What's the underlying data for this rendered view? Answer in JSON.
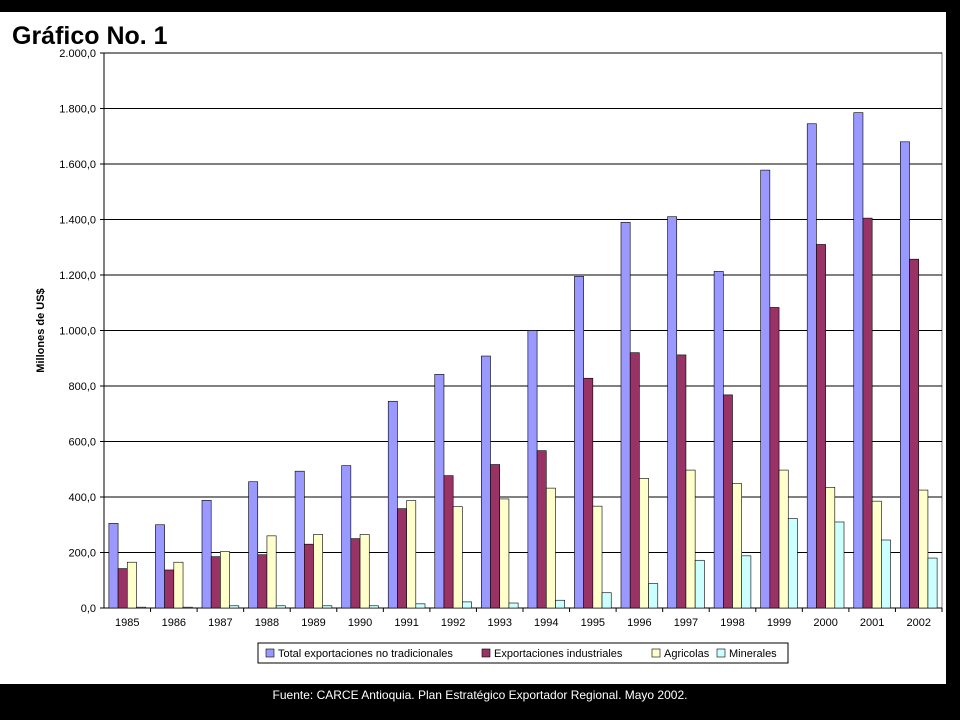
{
  "chart_data": {
    "type": "bar",
    "title": "Gráfico No. 1",
    "xlabel": "",
    "ylabel": "Millones de US$",
    "ylim": [
      0,
      2000
    ],
    "yticks": [
      "0,0",
      "200,0",
      "400,0",
      "600,0",
      "800,0",
      "1.000,0",
      "1.200,0",
      "1.400,0",
      "1.600,0",
      "1.800,0",
      "2.000,0"
    ],
    "grid": true,
    "legend_position": "bottom",
    "categories": [
      "1985",
      "1986",
      "1987",
      "1988",
      "1989",
      "1990",
      "1991",
      "1992",
      "1993",
      "1994",
      "1995",
      "1996",
      "1997",
      "1998",
      "1999",
      "2000",
      "2001",
      "2002"
    ],
    "series": [
      {
        "name": "Total exportaciones no tradicionales",
        "color": "#9999ff",
        "values": [
          305,
          300,
          388,
          455,
          493,
          513,
          745,
          842,
          908,
          1000,
          1195,
          1390,
          1410,
          1213,
          1578,
          1745,
          1785,
          1680
        ]
      },
      {
        "name": "Exportaciones industriales",
        "color": "#993366",
        "values": [
          142,
          137,
          185,
          192,
          230,
          250,
          358,
          477,
          517,
          567,
          828,
          920,
          912,
          768,
          1083,
          1310,
          1405,
          1257
        ]
      },
      {
        "name": "Agricolas",
        "color": "#ffffcc",
        "values": [
          165,
          165,
          203,
          260,
          265,
          265,
          387,
          365,
          393,
          432,
          367,
          467,
          497,
          448,
          497,
          435,
          385,
          425
        ]
      },
      {
        "name": "Minerales",
        "color": "#ccffff",
        "values": [
          3,
          3,
          8,
          8,
          8,
          8,
          15,
          22,
          18,
          28,
          55,
          88,
          172,
          188,
          322,
          310,
          245,
          180
        ]
      }
    ]
  },
  "source": "Fuente: CARCE Antioquia. Plan Estratégico Exportador Regional. Mayo 2002."
}
